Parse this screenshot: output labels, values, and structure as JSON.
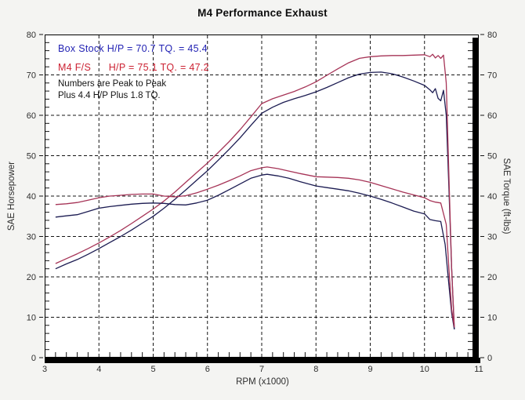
{
  "title": "M4 Performance Exhaust",
  "annotations": {
    "legend_box_stock": "Box Stock H/P = 70.7 TQ. = 45.4",
    "legend_m4": "M4 F/S      H/P = 75.1 TQ. = 47.2",
    "note_line1": "Numbers are Peak to Peak",
    "note_line2": "Plus 4.4 H/P Plus 1.8 TQ."
  },
  "colors": {
    "legend_blue_text": "#2323b4",
    "legend_red_text": "#cc2233",
    "curve_box_stock": "#1c1c52",
    "curve_m4": "#a63457",
    "grid": "#141414",
    "tick_text": "#2e2e2e",
    "plot_bg": "#ffffff"
  },
  "chart_data": {
    "type": "line",
    "title": "M4 Performance Exhaust",
    "xlabel": "RPM (x1000)",
    "ylabel_left": "SAE Horsepower",
    "ylabel_right": "SAE Torque (ft-lbs)",
    "xlim": [
      3,
      11
    ],
    "ylim_left": [
      0,
      80
    ],
    "ylim_right": [
      0,
      80
    ],
    "x_major_step": 1,
    "x_minor_step": 0.2,
    "y_major_step": 10,
    "y_minor_step": 2,
    "grid": "dashed",
    "legend_position": "top-left",
    "peaks": {
      "box_stock_hp": 70.7,
      "box_stock_tq": 45.4,
      "m4_hp": 75.1,
      "m4_tq": 47.2,
      "hp_gain": 4.4,
      "tq_gain": 1.8
    },
    "series": [
      {
        "name": "Box Stock HP",
        "axis": "left",
        "color": "#1c1c52",
        "points": [
          [
            3.2,
            22.0
          ],
          [
            3.4,
            23.2
          ],
          [
            3.6,
            24.3
          ],
          [
            3.8,
            25.6
          ],
          [
            4.0,
            27.0
          ],
          [
            4.2,
            28.5
          ],
          [
            4.4,
            30.0
          ],
          [
            4.6,
            31.6
          ],
          [
            4.8,
            33.3
          ],
          [
            5.0,
            35.0
          ],
          [
            5.2,
            37.0
          ],
          [
            5.4,
            39.2
          ],
          [
            5.6,
            41.5
          ],
          [
            5.8,
            43.9
          ],
          [
            6.0,
            46.3
          ],
          [
            6.2,
            48.9
          ],
          [
            6.4,
            51.6
          ],
          [
            6.6,
            54.4
          ],
          [
            6.8,
            57.5
          ],
          [
            7.0,
            60.5
          ],
          [
            7.2,
            62.0
          ],
          [
            7.4,
            63.2
          ],
          [
            7.6,
            64.1
          ],
          [
            7.8,
            64.9
          ],
          [
            8.0,
            65.8
          ],
          [
            8.2,
            66.9
          ],
          [
            8.4,
            68.1
          ],
          [
            8.6,
            69.3
          ],
          [
            8.8,
            70.2
          ],
          [
            9.0,
            70.6
          ],
          [
            9.2,
            70.7
          ],
          [
            9.4,
            70.3
          ],
          [
            9.6,
            69.5
          ],
          [
            9.8,
            68.5
          ],
          [
            10.0,
            67.4
          ],
          [
            10.1,
            66.3
          ],
          [
            10.15,
            65.6
          ],
          [
            10.2,
            66.6
          ],
          [
            10.25,
            64.2
          ],
          [
            10.3,
            63.6
          ],
          [
            10.35,
            66.2
          ],
          [
            10.4,
            60.0
          ],
          [
            10.45,
            42.0
          ],
          [
            10.5,
            22.0
          ],
          [
            10.55,
            7.0
          ]
        ]
      },
      {
        "name": "M4 F/S HP",
        "axis": "left",
        "color": "#a63457",
        "points": [
          [
            3.2,
            23.3
          ],
          [
            3.4,
            24.5
          ],
          [
            3.6,
            25.7
          ],
          [
            3.8,
            27.0
          ],
          [
            4.0,
            28.4
          ],
          [
            4.2,
            29.9
          ],
          [
            4.4,
            31.5
          ],
          [
            4.6,
            33.2
          ],
          [
            4.8,
            35.0
          ],
          [
            5.0,
            36.8
          ],
          [
            5.2,
            38.8
          ],
          [
            5.4,
            41.0
          ],
          [
            5.6,
            43.4
          ],
          [
            5.8,
            45.8
          ],
          [
            6.0,
            48.2
          ],
          [
            6.2,
            50.8
          ],
          [
            6.4,
            53.5
          ],
          [
            6.6,
            56.4
          ],
          [
            6.8,
            59.6
          ],
          [
            7.0,
            62.9
          ],
          [
            7.2,
            64.1
          ],
          [
            7.4,
            65.0
          ],
          [
            7.6,
            65.9
          ],
          [
            7.8,
            67.0
          ],
          [
            8.0,
            68.3
          ],
          [
            8.2,
            69.9
          ],
          [
            8.4,
            71.5
          ],
          [
            8.6,
            73.0
          ],
          [
            8.8,
            74.1
          ],
          [
            9.0,
            74.5
          ],
          [
            9.2,
            74.7
          ],
          [
            9.4,
            74.8
          ],
          [
            9.6,
            74.8
          ],
          [
            9.8,
            74.9
          ],
          [
            10.0,
            75.0
          ],
          [
            10.1,
            74.5
          ],
          [
            10.15,
            75.1
          ],
          [
            10.2,
            74.2
          ],
          [
            10.25,
            74.8
          ],
          [
            10.3,
            74.1
          ],
          [
            10.35,
            74.9
          ],
          [
            10.4,
            68.0
          ],
          [
            10.45,
            45.0
          ],
          [
            10.5,
            22.0
          ],
          [
            10.55,
            7.5
          ]
        ]
      },
      {
        "name": "Box Stock TQ",
        "axis": "right",
        "color": "#1c1c52",
        "points": [
          [
            3.2,
            34.8
          ],
          [
            3.4,
            35.1
          ],
          [
            3.6,
            35.4
          ],
          [
            3.8,
            36.2
          ],
          [
            4.0,
            37.0
          ],
          [
            4.2,
            37.4
          ],
          [
            4.4,
            37.7
          ],
          [
            4.6,
            38.0
          ],
          [
            4.8,
            38.2
          ],
          [
            5.0,
            38.3
          ],
          [
            5.2,
            38.2
          ],
          [
            5.4,
            37.9
          ],
          [
            5.6,
            37.8
          ],
          [
            5.8,
            38.3
          ],
          [
            6.0,
            39.0
          ],
          [
            6.2,
            40.2
          ],
          [
            6.4,
            41.6
          ],
          [
            6.6,
            43.0
          ],
          [
            6.8,
            44.4
          ],
          [
            7.0,
            45.2
          ],
          [
            7.1,
            45.4
          ],
          [
            7.3,
            45.0
          ],
          [
            7.5,
            44.4
          ],
          [
            7.7,
            43.6
          ],
          [
            8.0,
            42.5
          ],
          [
            8.2,
            42.1
          ],
          [
            8.4,
            41.7
          ],
          [
            8.6,
            41.3
          ],
          [
            8.8,
            40.7
          ],
          [
            9.0,
            40.0
          ],
          [
            9.2,
            39.2
          ],
          [
            9.4,
            38.3
          ],
          [
            9.6,
            37.3
          ],
          [
            9.8,
            36.3
          ],
          [
            10.0,
            35.6
          ],
          [
            10.1,
            34.2
          ],
          [
            10.2,
            33.9
          ],
          [
            10.3,
            33.7
          ],
          [
            10.38,
            28.0
          ],
          [
            10.45,
            18.0
          ],
          [
            10.5,
            11.0
          ],
          [
            10.55,
            7.0
          ]
        ]
      },
      {
        "name": "M4 F/S TQ",
        "axis": "right",
        "color": "#a63457",
        "points": [
          [
            3.2,
            37.9
          ],
          [
            3.4,
            38.1
          ],
          [
            3.6,
            38.4
          ],
          [
            3.8,
            39.0
          ],
          [
            4.0,
            39.6
          ],
          [
            4.2,
            40.0
          ],
          [
            4.4,
            40.2
          ],
          [
            4.6,
            40.4
          ],
          [
            4.8,
            40.5
          ],
          [
            5.0,
            40.5
          ],
          [
            5.2,
            40.0
          ],
          [
            5.4,
            39.8
          ],
          [
            5.6,
            40.1
          ],
          [
            5.8,
            40.8
          ],
          [
            6.0,
            41.7
          ],
          [
            6.2,
            42.7
          ],
          [
            6.4,
            43.8
          ],
          [
            6.6,
            45.0
          ],
          [
            6.8,
            46.3
          ],
          [
            7.0,
            47.0
          ],
          [
            7.1,
            47.2
          ],
          [
            7.3,
            46.8
          ],
          [
            7.5,
            46.2
          ],
          [
            7.7,
            45.6
          ],
          [
            8.0,
            44.8
          ],
          [
            8.2,
            44.7
          ],
          [
            8.4,
            44.6
          ],
          [
            8.6,
            44.4
          ],
          [
            8.8,
            44.0
          ],
          [
            9.0,
            43.4
          ],
          [
            9.2,
            42.6
          ],
          [
            9.4,
            41.8
          ],
          [
            9.6,
            41.0
          ],
          [
            9.8,
            40.3
          ],
          [
            10.0,
            39.6
          ],
          [
            10.1,
            38.9
          ],
          [
            10.2,
            38.5
          ],
          [
            10.3,
            38.3
          ],
          [
            10.4,
            33.0
          ],
          [
            10.45,
            22.0
          ],
          [
            10.5,
            12.0
          ],
          [
            10.55,
            7.5
          ]
        ]
      }
    ]
  }
}
